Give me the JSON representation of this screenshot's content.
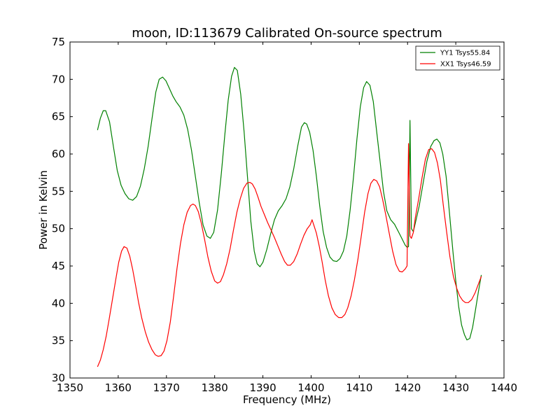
{
  "chart_data": {
    "type": "line",
    "title": "moon, ID:113679 Calibrated On-source spectrum",
    "xlabel": "Frequency (MHz)",
    "ylabel": "Power in Kelvin",
    "xlim": [
      1350,
      1440
    ],
    "ylim": [
      30,
      75
    ],
    "xticks": [
      1350,
      1360,
      1370,
      1380,
      1390,
      1400,
      1410,
      1420,
      1430,
      1440
    ],
    "yticks": [
      30,
      35,
      40,
      45,
      50,
      55,
      60,
      65,
      70,
      75
    ],
    "xtick_labels": [
      "1350",
      "1360",
      "1370",
      "1380",
      "1390",
      "1400",
      "1410",
      "1420",
      "1430",
      "1440"
    ],
    "ytick_labels": [
      "30",
      "35",
      "40",
      "45",
      "50",
      "55",
      "60",
      "65",
      "70",
      "75"
    ],
    "grid": false,
    "legend_position": "top-right",
    "series": [
      {
        "name": "YY1 Tsys55.84",
        "color": "#008000",
        "x": [
          1355.7,
          1356.3,
          1356.9,
          1357.4,
          1358.2,
          1359.0,
          1359.8,
          1360.6,
          1361.4,
          1362.2,
          1363.0,
          1363.8,
          1364.6,
          1365.4,
          1366.2,
          1367.0,
          1367.8,
          1368.5,
          1369.2,
          1369.9,
          1370.6,
          1371.3,
          1372.0,
          1372.8,
          1373.6,
          1374.4,
          1375.2,
          1376.0,
          1376.8,
          1377.6,
          1378.4,
          1379.1,
          1379.8,
          1380.6,
          1381.4,
          1382.1,
          1382.8,
          1383.5,
          1384.1,
          1384.7,
          1385.4,
          1386.1,
          1386.8,
          1387.5,
          1388.2,
          1388.8,
          1389.4,
          1390.0,
          1390.8,
          1391.6,
          1392.4,
          1393.2,
          1394.0,
          1394.8,
          1395.6,
          1396.4,
          1397.2,
          1398.0,
          1398.6,
          1399.1,
          1399.7,
          1400.4,
          1401.1,
          1401.8,
          1402.5,
          1403.2,
          1403.9,
          1404.6,
          1405.3,
          1406.0,
          1406.7,
          1407.4,
          1408.1,
          1408.8,
          1409.5,
          1410.2,
          1410.9,
          1411.5,
          1412.2,
          1412.9,
          1413.6,
          1414.3,
          1415.0,
          1415.7,
          1416.5,
          1417.3,
          1418.1,
          1418.8,
          1419.5,
          1419.9,
          1420.2,
          1420.5,
          1420.8,
          1421.2,
          1421.6,
          1422.4,
          1423.2,
          1424.0,
          1424.8,
          1425.5,
          1426.1,
          1426.7,
          1427.3,
          1428.0,
          1428.7,
          1429.4,
          1430.0,
          1430.6,
          1431.2,
          1431.8,
          1432.3,
          1432.9,
          1433.5,
          1434.1,
          1434.7,
          1435.3
        ],
        "values": [
          63.2,
          64.8,
          65.8,
          65.8,
          64.3,
          61.0,
          57.8,
          55.8,
          54.7,
          54.0,
          53.8,
          54.3,
          55.7,
          58.0,
          61.0,
          64.7,
          68.3,
          70.0,
          70.3,
          69.8,
          68.8,
          67.8,
          67.0,
          66.3,
          65.2,
          63.3,
          60.5,
          57.0,
          53.5,
          50.5,
          49.0,
          48.7,
          49.5,
          52.5,
          57.5,
          62.5,
          67.2,
          70.4,
          71.6,
          71.2,
          68.0,
          63.0,
          57.0,
          51.0,
          47.0,
          45.3,
          44.9,
          45.5,
          47.2,
          49.3,
          51.2,
          52.4,
          53.1,
          54.0,
          55.6,
          58.0,
          61.0,
          63.6,
          64.2,
          64.0,
          62.9,
          60.5,
          57.0,
          53.0,
          49.6,
          47.5,
          46.2,
          45.7,
          45.6,
          46.0,
          47.0,
          49.0,
          52.5,
          57.0,
          62.0,
          66.3,
          68.9,
          69.7,
          69.2,
          67.0,
          63.0,
          59.0,
          55.0,
          52.4,
          51.2,
          50.6,
          49.6,
          48.7,
          47.8,
          47.5,
          47.6,
          64.5,
          50.0,
          49.6,
          50.7,
          53.0,
          56.0,
          59.0,
          61.0,
          61.8,
          62.0,
          61.5,
          60.0,
          57.0,
          52.0,
          47.0,
          43.0,
          39.6,
          37.1,
          35.8,
          35.1,
          35.3,
          36.8,
          39.2,
          41.6,
          43.8
        ]
      },
      {
        "name": "XX1 Tsys46.59",
        "color": "#ff0000",
        "x": [
          1355.7,
          1356.3,
          1356.9,
          1357.5,
          1358.1,
          1358.8,
          1359.5,
          1360.1,
          1360.7,
          1361.2,
          1361.8,
          1362.4,
          1363.0,
          1363.6,
          1364.2,
          1364.9,
          1365.6,
          1366.3,
          1367.0,
          1367.7,
          1368.3,
          1368.9,
          1369.5,
          1370.1,
          1370.8,
          1371.5,
          1372.2,
          1372.9,
          1373.6,
          1374.3,
          1375.0,
          1375.5,
          1376.0,
          1376.6,
          1377.2,
          1377.9,
          1378.6,
          1379.3,
          1380.0,
          1380.6,
          1381.2,
          1381.8,
          1382.5,
          1383.2,
          1383.9,
          1384.6,
          1385.3,
          1386.0,
          1386.7,
          1387.3,
          1387.8,
          1388.4,
          1389.0,
          1389.6,
          1390.3,
          1391.0,
          1391.7,
          1392.4,
          1393.1,
          1393.8,
          1394.5,
          1395.1,
          1395.7,
          1396.4,
          1397.1,
          1397.8,
          1398.5,
          1399.2,
          1399.8,
          1400.2,
          1400.6,
          1401.1,
          1401.7,
          1402.3,
          1402.9,
          1403.6,
          1404.3,
          1405.0,
          1405.7,
          1406.4,
          1407.0,
          1407.6,
          1408.3,
          1409.0,
          1409.7,
          1410.4,
          1411.1,
          1411.8,
          1412.4,
          1413.0,
          1413.6,
          1414.2,
          1414.8,
          1415.5,
          1416.2,
          1416.9,
          1417.6,
          1418.3,
          1418.9,
          1419.5,
          1419.9,
          1420.2,
          1420.5,
          1420.8,
          1421.2,
          1421.6,
          1422.3,
          1423.0,
          1423.7,
          1424.4,
          1425.0,
          1425.6,
          1426.2,
          1426.8,
          1427.4,
          1428.1,
          1428.8,
          1429.5,
          1430.2,
          1430.8,
          1431.4,
          1432.0,
          1432.6,
          1433.3,
          1434.0,
          1434.7,
          1435.3
        ],
        "values": [
          31.5,
          32.4,
          33.8,
          35.6,
          37.8,
          40.5,
          43.2,
          45.5,
          47.0,
          47.6,
          47.4,
          46.3,
          44.5,
          42.4,
          40.2,
          38.0,
          36.2,
          34.8,
          33.8,
          33.1,
          32.9,
          33.0,
          33.6,
          35.0,
          37.5,
          41.0,
          44.7,
          48.0,
          50.5,
          52.2,
          53.1,
          53.3,
          53.1,
          52.3,
          50.8,
          48.6,
          46.2,
          44.3,
          43.0,
          42.7,
          42.9,
          43.8,
          45.3,
          47.3,
          49.8,
          52.2,
          54.0,
          55.4,
          56.1,
          56.2,
          56.0,
          55.3,
          54.2,
          53.0,
          51.9,
          50.8,
          49.8,
          48.8,
          47.7,
          46.6,
          45.6,
          45.1,
          45.1,
          45.6,
          46.6,
          47.9,
          49.1,
          50.0,
          50.5,
          51.2,
          50.4,
          49.4,
          47.6,
          45.5,
          43.2,
          41.0,
          39.4,
          38.5,
          38.1,
          38.1,
          38.5,
          39.4,
          41.0,
          43.2,
          45.9,
          49.0,
          52.2,
          54.7,
          56.1,
          56.6,
          56.4,
          55.6,
          54.0,
          51.8,
          49.4,
          47.0,
          45.2,
          44.3,
          44.2,
          44.6,
          45.0,
          61.4,
          49.0,
          48.7,
          49.5,
          51.4,
          54.0,
          56.8,
          59.3,
          60.6,
          60.7,
          60.2,
          58.8,
          56.5,
          53.2,
          49.6,
          46.2,
          43.6,
          42.0,
          41.0,
          40.4,
          40.1,
          40.1,
          40.5,
          41.4,
          42.6,
          43.6
        ]
      }
    ]
  }
}
